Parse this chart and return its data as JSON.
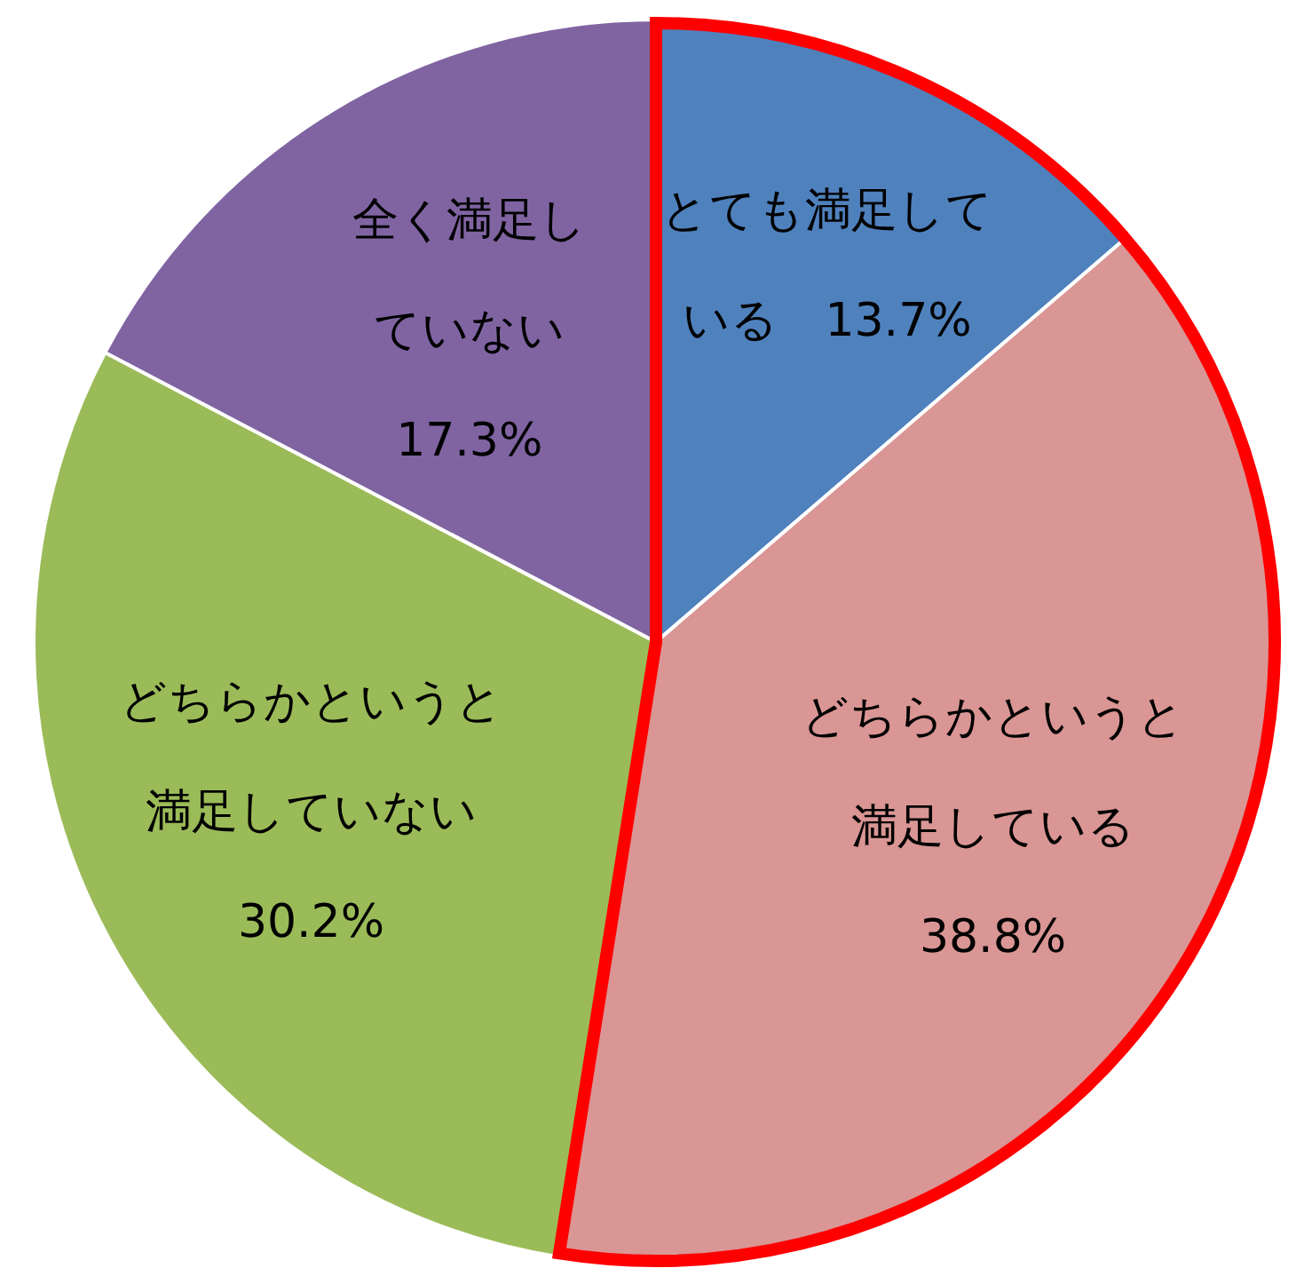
{
  "chart_data": {
    "type": "pie",
    "categories": [
      "とても満足している",
      "どちらかというと満足している",
      "どちらかというと満足していない",
      "全く満足していない"
    ],
    "values": [
      13.7,
      38.8,
      30.2,
      17.3
    ],
    "colors": [
      "#4f81bd",
      "#d99694",
      "#9bbb59",
      "#8064a2"
    ],
    "value_labels": [
      "13.7%",
      "38.8%",
      "30.2%",
      "17.3%"
    ],
    "legend": false
  }
}
